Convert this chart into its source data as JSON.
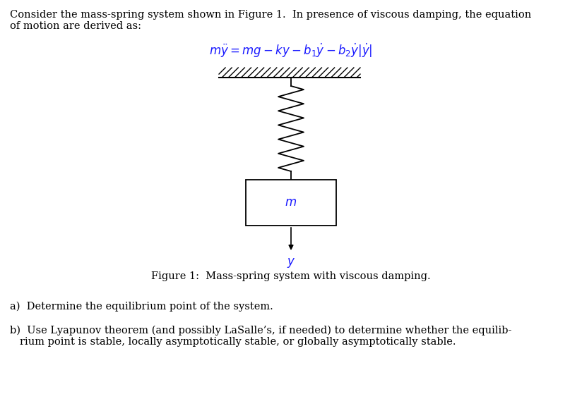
{
  "bg_color": "#ffffff",
  "text_color": "#000000",
  "blue_color": "#1a1aff",
  "header_text1": "Consider the mass-spring system shown in Figure 1.  In presence of viscous damping, the equation",
  "header_text2": "of motion are derived as:",
  "equation": "$m\\ddot{y} = mg - ky - b_1\\dot{y} - b_2\\dot{y}|\\dot{y}|$",
  "figure_caption": "Figure 1:  Mass-spring system with viscous damping.",
  "question_a": "a)  Determine the equilibrium point of the system.",
  "question_b1": "b)  Use Lyapunov theorem (and possibly LaSalle’s, if needed) to determine whether the equilib-",
  "question_b2": "rium point is stable, locally asymptotically stable, or globally asymptotically stable.",
  "fig_width": 8.24,
  "fig_height": 5.76
}
